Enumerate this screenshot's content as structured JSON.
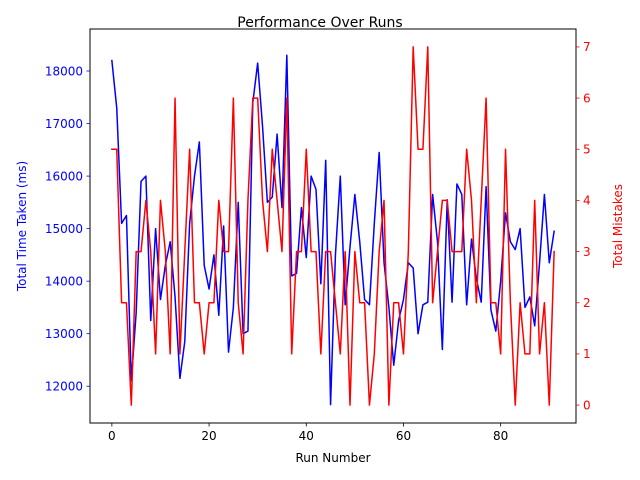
{
  "chart_data": {
    "type": "line",
    "title": "Performance Over Runs",
    "xlabel": "Run Number",
    "ylabel_left": "Total Time Taken (ms)",
    "ylabel_right": "Total Mistakes",
    "xlim": [
      -4.5,
      95.5
    ],
    "ylim_left": [
      11300,
      18800
    ],
    "ylim_right": [
      -0.35,
      7.35
    ],
    "x_ticks": [
      0,
      20,
      40,
      60,
      80
    ],
    "y_ticks_left": [
      12000,
      13000,
      14000,
      15000,
      16000,
      17000,
      18000
    ],
    "y_ticks_right": [
      0,
      1,
      2,
      3,
      4,
      5,
      6,
      7
    ],
    "grid": false,
    "colors": {
      "time": "#0000ff",
      "mistakes": "#ff0000",
      "axes": "#000000"
    },
    "x": [
      0,
      1,
      2,
      3,
      4,
      5,
      6,
      7,
      8,
      9,
      10,
      11,
      12,
      13,
      14,
      15,
      16,
      17,
      18,
      19,
      20,
      21,
      22,
      23,
      24,
      25,
      26,
      27,
      28,
      29,
      30,
      31,
      32,
      33,
      34,
      35,
      36,
      37,
      38,
      39,
      40,
      41,
      42,
      43,
      44,
      45,
      46,
      47,
      48,
      49,
      50,
      51,
      52,
      53,
      54,
      55,
      56,
      57,
      58,
      59,
      60,
      61,
      62,
      63,
      64,
      65,
      66,
      67,
      68,
      69,
      70,
      71,
      72,
      73,
      74,
      75,
      76,
      77,
      78,
      79,
      80,
      81,
      82,
      83,
      84,
      85,
      86,
      87,
      88,
      89,
      90,
      91
    ],
    "series": [
      {
        "axis": "left",
        "values": [
          18200,
          17300,
          15100,
          15250,
          12100,
          13400,
          15900,
          16000,
          13250,
          15000,
          13650,
          14300,
          14750,
          13700,
          12150,
          12850,
          15100,
          16000,
          16650,
          14300,
          13850,
          14500,
          13350,
          15050,
          12650,
          13500,
          15500,
          13000,
          13050,
          17400,
          18150,
          16950,
          15500,
          15600,
          16800,
          15400,
          18300,
          14100,
          14150,
          15400,
          14450,
          16000,
          15750,
          13950,
          16300,
          11650,
          14500,
          16000,
          13550,
          14650,
          15650,
          14750,
          13650,
          13550,
          15100,
          16450,
          14350,
          13500,
          12400,
          13250,
          13650,
          14350,
          14250,
          13000,
          13550,
          13600,
          15650,
          14750,
          12700,
          15550,
          13600,
          15850,
          15650,
          13550,
          14800,
          14050,
          13600,
          15800,
          13450,
          13050,
          14000,
          15300,
          14750,
          14600,
          15000,
          13500,
          13700,
          13150,
          14350,
          15650,
          14350,
          14950
        ]
      },
      {
        "axis": "right",
        "values": [
          5,
          5,
          2,
          2,
          0,
          3,
          3,
          4,
          3,
          1,
          4,
          3,
          1,
          6,
          1,
          3,
          5,
          2,
          2,
          1,
          2,
          2,
          4,
          3,
          3,
          6,
          2,
          1,
          4,
          6,
          6,
          4,
          3,
          5,
          4,
          3,
          6,
          1,
          3,
          3,
          5,
          3,
          3,
          1,
          3,
          3,
          2,
          1,
          3,
          0,
          3,
          2,
          2,
          0,
          1,
          3,
          4,
          0,
          2,
          2,
          1,
          3,
          7,
          5,
          5,
          7,
          2,
          3,
          4,
          4,
          3,
          3,
          3,
          5,
          4,
          2,
          4,
          6,
          2,
          2,
          1,
          5,
          2,
          0,
          2,
          1,
          1,
          4,
          1,
          2,
          0,
          3
        ]
      }
    ]
  }
}
